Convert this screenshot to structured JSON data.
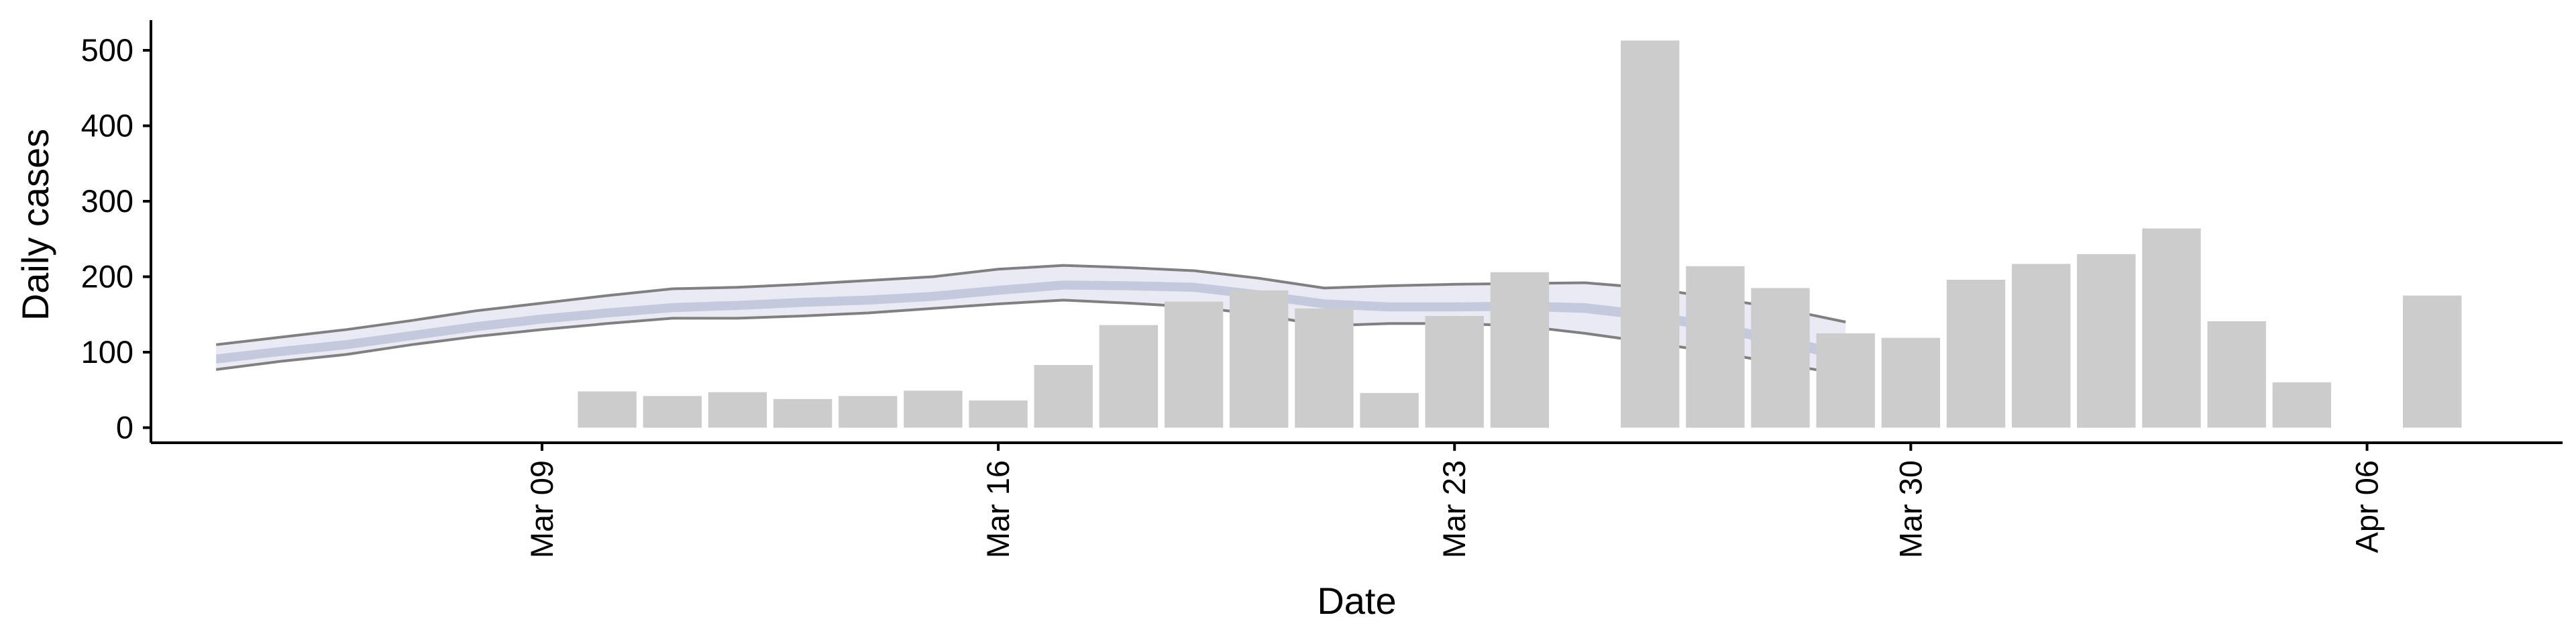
{
  "chart_data": {
    "type": "bar",
    "title": "",
    "xlabel": "Date",
    "ylabel": "Daily cases",
    "ylim": [
      -20,
      540
    ],
    "grid": false,
    "legend": "none",
    "y_ticks": [
      0,
      100,
      200,
      300,
      400,
      500
    ],
    "x_ticks": [
      {
        "date": "2020-03-09",
        "label": "Mar 09"
      },
      {
        "date": "2020-03-16",
        "label": "Mar 16"
      },
      {
        "date": "2020-03-23",
        "label": "Mar 23"
      },
      {
        "date": "2020-03-30",
        "label": "Mar 30"
      },
      {
        "date": "2020-04-06",
        "label": "Apr 06"
      }
    ],
    "xlim": [
      "2020-03-03",
      "2020-04-09"
    ],
    "bars": {
      "color": "#cccccc",
      "x": [
        "2020-03-10",
        "2020-03-11",
        "2020-03-12",
        "2020-03-13",
        "2020-03-14",
        "2020-03-15",
        "2020-03-16",
        "2020-03-17",
        "2020-03-18",
        "2020-03-19",
        "2020-03-20",
        "2020-03-21",
        "2020-03-22",
        "2020-03-23",
        "2020-03-24",
        "2020-03-26",
        "2020-03-27",
        "2020-03-28",
        "2020-03-29",
        "2020-03-30",
        "2020-03-31",
        "2020-04-01",
        "2020-04-02",
        "2020-04-03",
        "2020-04-04",
        "2020-04-05",
        "2020-04-07"
      ],
      "values": [
        48,
        42,
        47,
        38,
        42,
        49,
        36,
        83,
        136,
        167,
        182,
        158,
        46,
        148,
        206,
        513,
        214,
        185,
        125,
        119,
        196,
        217,
        230,
        264,
        141,
        60,
        175
      ]
    },
    "band": {
      "fill_color": "#e9eaf4",
      "line_color": "#808080",
      "x": [
        "2020-03-04",
        "2020-03-05",
        "2020-03-06",
        "2020-03-07",
        "2020-03-08",
        "2020-03-09",
        "2020-03-10",
        "2020-03-11",
        "2020-03-12",
        "2020-03-13",
        "2020-03-14",
        "2020-03-15",
        "2020-03-16",
        "2020-03-17",
        "2020-03-18",
        "2020-03-19",
        "2020-03-20",
        "2020-03-21",
        "2020-03-22",
        "2020-03-23",
        "2020-03-24",
        "2020-03-25",
        "2020-03-26",
        "2020-03-27",
        "2020-03-28",
        "2020-03-29"
      ],
      "upper": [
        110,
        120,
        130,
        142,
        155,
        165,
        175,
        184,
        186,
        190,
        195,
        200,
        210,
        215,
        212,
        208,
        198,
        185,
        188,
        190,
        191,
        192,
        185,
        172,
        158,
        140
      ],
      "lower": [
        77,
        88,
        97,
        110,
        121,
        130,
        138,
        145,
        145,
        148,
        152,
        158,
        164,
        169,
        165,
        160,
        150,
        135,
        138,
        138,
        135,
        125,
        113,
        100,
        85,
        70
      ]
    },
    "central_band": {
      "color": "#c5c9de",
      "x": [
        "2020-03-04",
        "2020-03-05",
        "2020-03-06",
        "2020-03-07",
        "2020-03-08",
        "2020-03-09",
        "2020-03-10",
        "2020-03-11",
        "2020-03-12",
        "2020-03-13",
        "2020-03-14",
        "2020-03-15",
        "2020-03-16",
        "2020-03-17",
        "2020-03-18",
        "2020-03-19",
        "2020-03-20",
        "2020-03-21",
        "2020-03-22",
        "2020-03-23",
        "2020-03-24",
        "2020-03-25",
        "2020-03-26",
        "2020-03-27",
        "2020-03-28",
        "2020-03-29"
      ],
      "upper": [
        97,
        107,
        116,
        128,
        140,
        150,
        158,
        165,
        168,
        172,
        175,
        180,
        188,
        195,
        194,
        192,
        182,
        170,
        166,
        166,
        167,
        165,
        155,
        140,
        122,
        103
      ],
      "lower": [
        85,
        95,
        104,
        116,
        128,
        138,
        146,
        153,
        156,
        160,
        163,
        168,
        176,
        183,
        182,
        180,
        170,
        158,
        154,
        154,
        155,
        152,
        142,
        127,
        108,
        88
      ]
    }
  }
}
